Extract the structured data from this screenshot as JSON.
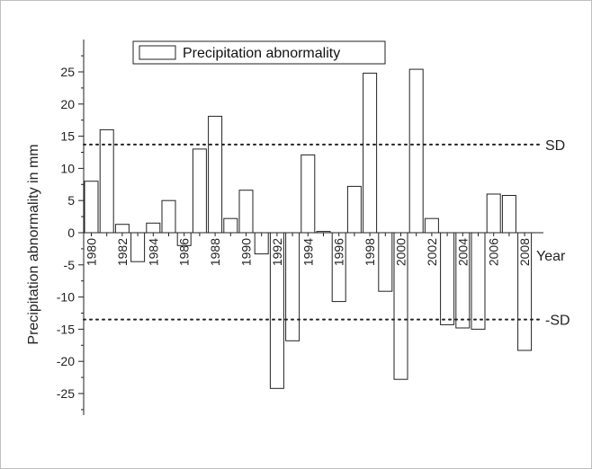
{
  "chart_data": {
    "type": "bar",
    "title": "",
    "xlabel": "Year",
    "ylabel": "Precipitation abnormality in mm",
    "ylim": [
      -30,
      30
    ],
    "yticks": [
      -25,
      -20,
      -15,
      -10,
      -5,
      0,
      5,
      10,
      15,
      20,
      25
    ],
    "xtick_labels": [
      "1980",
      "1982",
      "1984",
      "1986",
      "1988",
      "1990",
      "1992",
      "1994",
      "1996",
      "1998",
      "2000",
      "2002",
      "2004",
      "2006",
      "2008"
    ],
    "legend": {
      "label": "Precipitation abnormality",
      "position": "top"
    },
    "reference_lines": [
      {
        "label": "SD",
        "value": 13.7
      },
      {
        "label": "-SD",
        "value": -13.5
      }
    ],
    "categories": [
      "1980",
      "1981",
      "1982",
      "1983",
      "1984",
      "1985",
      "1986",
      "1987",
      "1988",
      "1989",
      "1990",
      "1991",
      "1992",
      "1993",
      "1994",
      "1995",
      "1996",
      "1997",
      "1998",
      "1999",
      "2000",
      "2001",
      "2002",
      "2003",
      "2004",
      "2005",
      "2006",
      "2007",
      "2008"
    ],
    "values": [
      8.0,
      16.0,
      1.3,
      -4.5,
      1.5,
      5.0,
      -2.0,
      13.0,
      18.1,
      2.2,
      6.6,
      -3.3,
      -24.2,
      -16.8,
      12.1,
      0.2,
      -10.7,
      7.2,
      24.8,
      -9.1,
      -22.8,
      25.4,
      2.2,
      -14.3,
      -14.8,
      -15.0,
      6.0,
      5.8,
      -18.3
    ],
    "grid": false
  }
}
